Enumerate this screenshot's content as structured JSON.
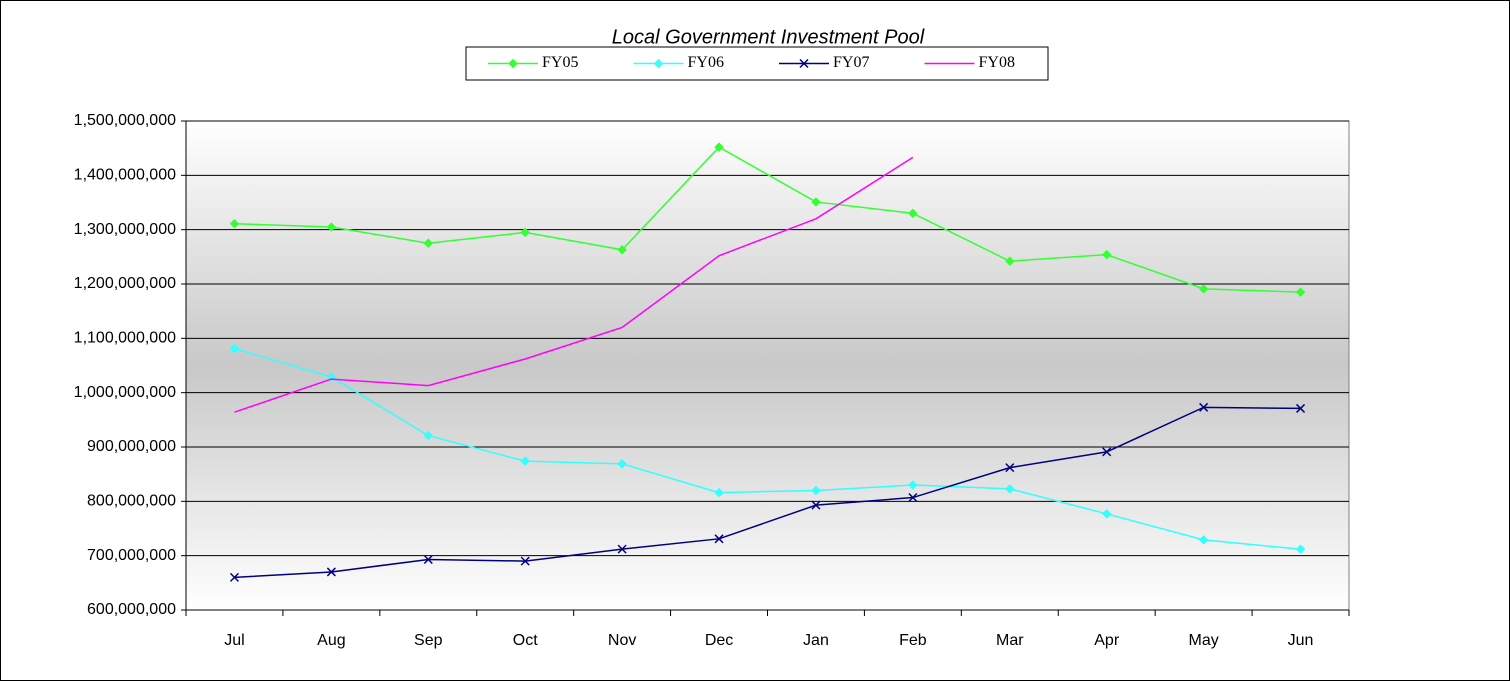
{
  "chart_data": {
    "type": "line",
    "title": "Local Government Investment Pool",
    "categories": [
      "Jul",
      "Aug",
      "Sep",
      "Oct",
      "Nov",
      "Dec",
      "Jan",
      "Feb",
      "Mar",
      "Apr",
      "May",
      "Jun"
    ],
    "series": [
      {
        "name": "FY05",
        "color": "#33ff33",
        "marker": "diamond",
        "values": [
          1311000000,
          1305000000,
          1275000000,
          1295000000,
          1263000000,
          1452000000,
          1351000000,
          1330000000,
          1242000000,
          1254000000,
          1191000000,
          1185000000
        ]
      },
      {
        "name": "FY06",
        "color": "#33ffff",
        "marker": "diamond",
        "values": [
          1081000000,
          1029000000,
          921000000,
          874000000,
          869000000,
          816000000,
          820000000,
          830000000,
          823000000,
          777000000,
          729000000,
          712000000
        ]
      },
      {
        "name": "FY07",
        "color": "#000080",
        "marker": "x",
        "values": [
          660000000,
          670000000,
          693000000,
          690000000,
          712000000,
          731000000,
          793000000,
          807000000,
          862000000,
          891000000,
          973000000,
          971000000
        ]
      },
      {
        "name": "FY08",
        "color": "#ff00ff",
        "marker": "none",
        "values": [
          964000000,
          1025000000,
          1013000000,
          1062000000,
          1120000000,
          1252000000,
          1320000000,
          1433000000,
          null,
          null,
          null,
          null
        ]
      }
    ],
    "ylim": [
      600000000,
      1500000000
    ],
    "yticks": [
      {
        "value": 600000000,
        "label": "600,000,000"
      },
      {
        "value": 700000000,
        "label": "700,000,000"
      },
      {
        "value": 800000000,
        "label": "800,000,000"
      },
      {
        "value": 900000000,
        "label": "900,000,000"
      },
      {
        "value": 1000000000,
        "label": "1,000,000,000"
      },
      {
        "value": 1100000000,
        "label": "1,100,000,000"
      },
      {
        "value": 1200000000,
        "label": "1,200,000,000"
      },
      {
        "value": 1300000000,
        "label": "1,300,000,000"
      },
      {
        "value": 1400000000,
        "label": "1,400,000,000"
      },
      {
        "value": 1500000000,
        "label": "1,500,000,000"
      }
    ],
    "grid": true,
    "legend": "top"
  }
}
